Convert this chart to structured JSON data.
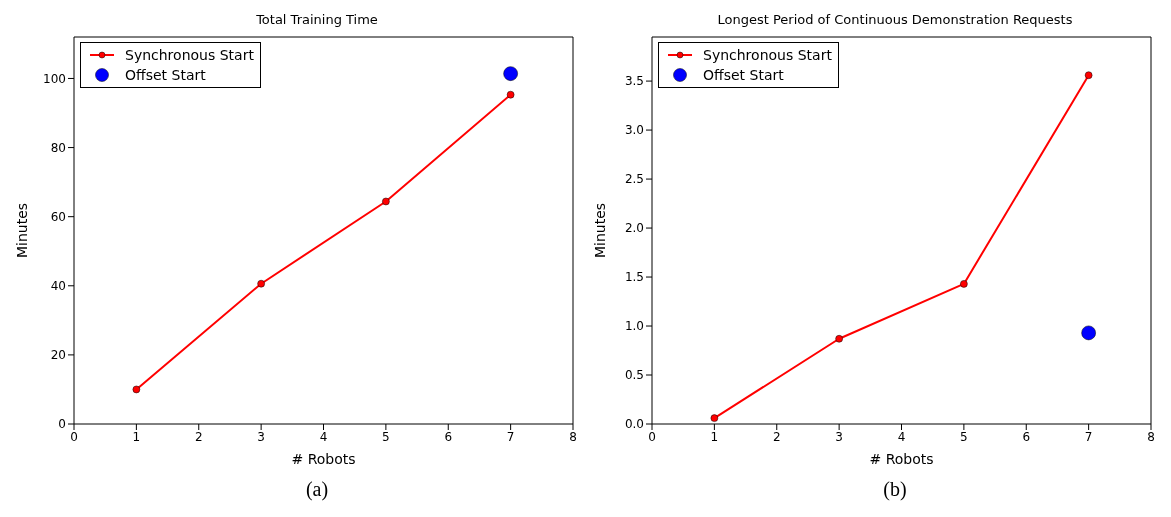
{
  "chart_data": [
    {
      "type": "line",
      "title": "Total Training Time",
      "xlabel": "# Robots",
      "ylabel": "Minutes",
      "xlim": [
        0,
        8
      ],
      "xticks": [
        0,
        1,
        2,
        3,
        4,
        5,
        6,
        7,
        8
      ],
      "ylim": [
        0,
        112
      ],
      "yticks": [
        0,
        20,
        40,
        60,
        80,
        100
      ],
      "grid": false,
      "legend": "top left",
      "marker": "circle",
      "line_style": "solid",
      "annotations": [
        "(a)"
      ],
      "series": [
        {
          "name": "Synchronous Start",
          "type": "line",
          "color": "#ff0000",
          "x": [
            1,
            3,
            5,
            7
          ],
          "values": [
            10,
            40.6,
            64.4,
            95.3
          ]
        },
        {
          "name": "Offset Start",
          "type": "scatter",
          "color": "#0000ff",
          "x": [
            7
          ],
          "values": [
            101.4
          ]
        }
      ]
    },
    {
      "type": "line",
      "title": "Longest Period of Continuous Demonstration Requests",
      "xlabel": "# Robots",
      "ylabel": "Minutes",
      "xlim": [
        0,
        8
      ],
      "xticks": [
        0,
        1,
        2,
        3,
        4,
        5,
        6,
        7,
        8
      ],
      "ylim": [
        0,
        3.95
      ],
      "yticks": [
        {
          "value": 0,
          "label": "0.0"
        },
        {
          "value": 0.5,
          "label": "0.5"
        },
        {
          "value": 1,
          "label": "1.0"
        },
        {
          "value": 1.5,
          "label": "1.5"
        },
        {
          "value": 2,
          "label": "2.0"
        },
        {
          "value": 2.5,
          "label": "2.5"
        },
        {
          "value": 3,
          "label": "3.0"
        },
        {
          "value": 3.5,
          "label": "3.5"
        }
      ],
      "grid": false,
      "legend": "top left",
      "marker": "circle",
      "line_style": "solid",
      "annotations": [
        "(b)"
      ],
      "series": [
        {
          "name": "Synchronous Start",
          "type": "line",
          "color": "#ff0000",
          "x": [
            1,
            3,
            5,
            7
          ],
          "values": [
            0.06,
            0.87,
            1.43,
            3.56
          ]
        },
        {
          "name": "Offset Start",
          "type": "scatter",
          "color": "#0000ff",
          "x": [
            7
          ],
          "values": [
            0.93
          ]
        }
      ]
    }
  ]
}
